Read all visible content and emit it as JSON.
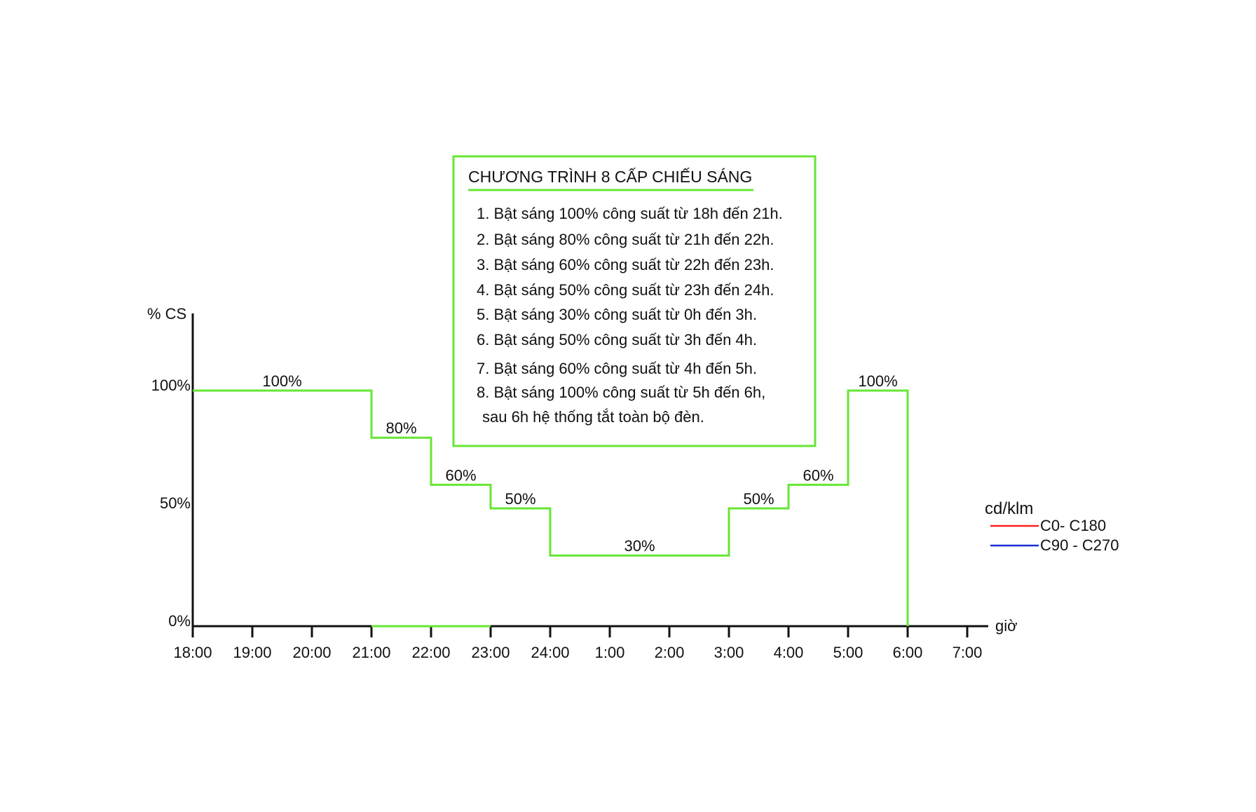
{
  "chart_data": {
    "type": "line",
    "ylabel": "% CS",
    "xlabel": "giờ",
    "x_categories": [
      "18:00",
      "19:00",
      "20:00",
      "21:00",
      "22:00",
      "23:00",
      "24:00",
      "1:00",
      "2:00",
      "3:00",
      "4:00",
      "5:00",
      "6:00",
      "7:00"
    ],
    "ylim": [
      0,
      100
    ],
    "y_ticks": [
      "0%",
      "50%",
      "100%"
    ],
    "series": [
      {
        "color": "#66e633",
        "step_levels": [
          {
            "from": "18:00",
            "to": "21:00",
            "value": 100,
            "label": "100%"
          },
          {
            "from": "21:00",
            "to": "22:00",
            "value": 80,
            "label": "80%"
          },
          {
            "from": "22:00",
            "to": "23:00",
            "value": 60,
            "label": "60%"
          },
          {
            "from": "23:00",
            "to": "24:00",
            "value": 50,
            "label": "50%"
          },
          {
            "from": "24:00",
            "to": "3:00",
            "value": 30,
            "label": "30%"
          },
          {
            "from": "3:00",
            "to": "4:00",
            "value": 50,
            "label": "50%"
          },
          {
            "from": "4:00",
            "to": "5:00",
            "value": 60,
            "label": "60%"
          },
          {
            "from": "5:00",
            "to": "6:00",
            "value": 100,
            "label": "100%"
          }
        ],
        "end_drop_to": 0,
        "baseline_highlight": {
          "from": "21:00",
          "to": "23:00",
          "value": 0
        }
      }
    ],
    "grid": false,
    "legend": {
      "placement": "right",
      "title": "cd/klm",
      "entries": [
        {
          "label": "C0- C180",
          "color": "#ff2020"
        },
        {
          "label": "C90 - C270",
          "color": "#1a2fd6"
        }
      ]
    },
    "info_box": {
      "border_color": "#66e633",
      "title": "CHƯƠNG TRÌNH 8 CẤP CHIẾU SÁNG",
      "lines": [
        "1. Bật sáng 100% công suất từ 18h đến 21h.",
        "2. Bật sáng 80% công suất từ 21h đến 22h.",
        "3. Bật sáng 60% công suất từ 22h đến 23h.",
        "4. Bật sáng 50% công suất từ 23h đến 24h.",
        "5. Bật sáng 30% công suất từ 0h đến 3h.",
        "6. Bật sáng 50% công suất từ 3h đến 4h.",
        "7. Bật sáng 60% công suất từ 4h đến 5h.",
        "8. Bật sáng 100% công suất từ 5h đến 6h,",
        "sau 6h hệ thống tắt toàn bộ đèn."
      ]
    }
  }
}
